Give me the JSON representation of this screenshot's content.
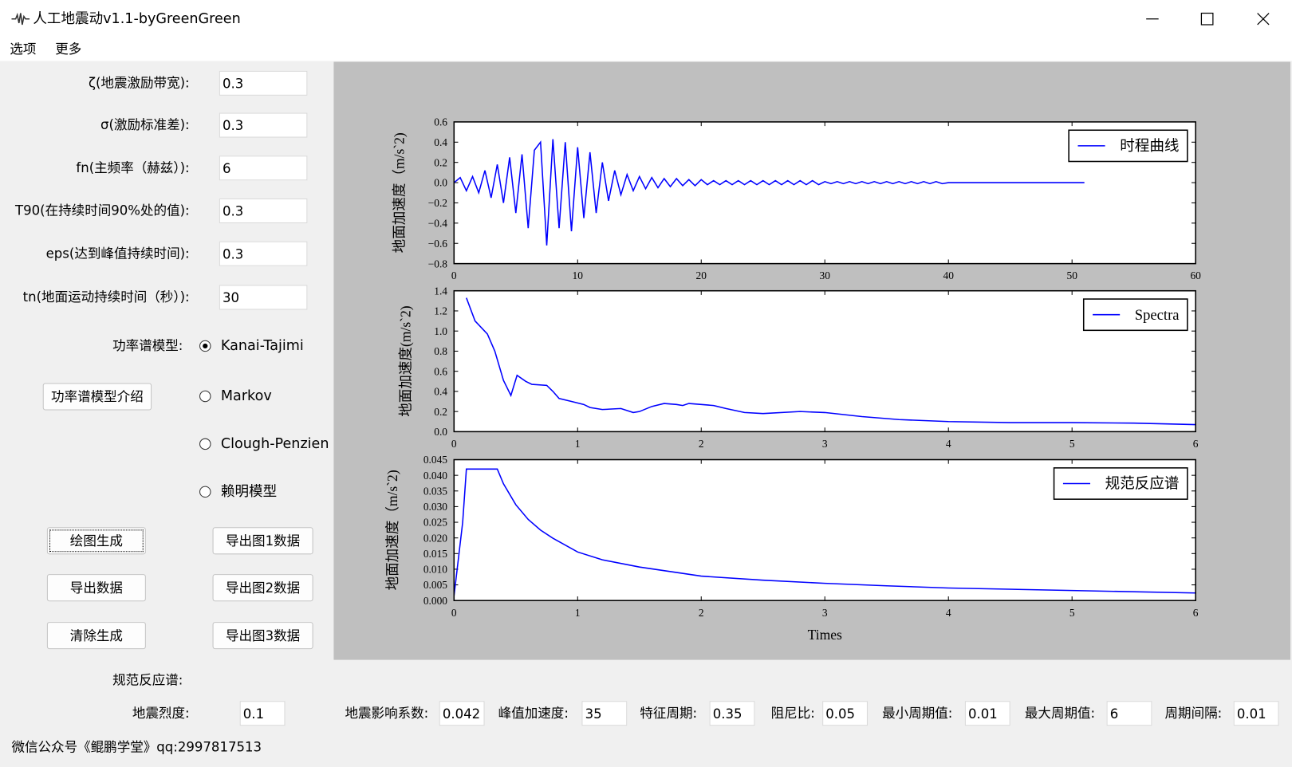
{
  "window": {
    "title": "人工地震动v1.1-byGreenGreen",
    "menu": [
      "选项",
      "更多"
    ]
  },
  "form": {
    "fields": [
      {
        "label": "ζ(地震激励带宽):",
        "value": "0.3"
      },
      {
        "label": "σ(激励标准差):",
        "value": "0.3"
      },
      {
        "label": "fn(主频率（赫兹）):",
        "value": "6"
      },
      {
        "label": "T90(在持续时间90%处的值):",
        "value": "0.3"
      },
      {
        "label": "eps(达到峰值持续时间):",
        "value": "0.3"
      },
      {
        "label": "tn(地面运动持续时间（秒）):",
        "value": "30"
      }
    ],
    "model_label": "功率谱模型:",
    "models": [
      {
        "label": "Kanai-Tajimi",
        "checked": true
      },
      {
        "label": "Markov",
        "checked": false
      },
      {
        "label": "Clough-Penzien",
        "checked": false
      },
      {
        "label": "赖明模型",
        "checked": false
      }
    ],
    "intro_button": "功率谱模型介绍",
    "buttons": [
      "绘图生成",
      "导出图1数据",
      "导出数据",
      "导出图2数据",
      "清除生成",
      "导出图3数据"
    ]
  },
  "spectrum": {
    "title": "规范反应谱:",
    "fields": [
      {
        "label": "地震烈度:",
        "value": "0.1"
      },
      {
        "label": "地震影响系数:",
        "value": "0.042"
      },
      {
        "label": "峰值加速度:",
        "value": "35"
      },
      {
        "label": "特征周期:",
        "value": "0.35"
      },
      {
        "label": "阻尼比:",
        "value": "0.05"
      },
      {
        "label": "最小周期值:",
        "value": "0.01"
      },
      {
        "label": "最大周期值:",
        "value": "6"
      },
      {
        "label": "周期间隔:",
        "value": "0.01"
      }
    ]
  },
  "footer": "微信公众号《鲲鹏学堂》qq:2997817513",
  "charts": [
    {
      "type": "line",
      "y_label": "地面加速度（m/s`2)",
      "legend": "upper right",
      "xlim": [
        0,
        60
      ],
      "xticks": [
        0,
        10,
        20,
        30,
        40,
        50,
        60
      ],
      "ylim": [
        -0.8,
        0.6
      ],
      "yticks": [
        {
          "value": -0.8,
          "label": "−0.8"
        },
        {
          "value": -0.6,
          "label": "−0.6"
        },
        {
          "value": -0.4,
          "label": "−0.4"
        },
        {
          "value": -0.2,
          "label": "−0.2"
        },
        {
          "value": 0,
          "label": "0.0"
        },
        0.2,
        0.4,
        0.6
      ],
      "x": [
        0,
        0.5,
        1,
        1.5,
        2,
        2.5,
        3,
        3.5,
        4,
        4.5,
        5,
        5.5,
        6,
        6.5,
        7,
        7.5,
        8,
        8.5,
        9,
        9.5,
        10,
        10.5,
        11,
        11.5,
        12,
        12.5,
        13,
        13.5,
        14,
        14.5,
        15,
        15.5,
        16,
        16.5,
        17,
        17.5,
        18,
        18.5,
        19,
        19.5,
        20,
        20.5,
        21,
        21.5,
        22,
        22.5,
        23,
        23.5,
        24,
        24.5,
        25,
        25.5,
        26,
        26.5,
        27,
        27.5,
        28,
        28.5,
        29,
        29.5,
        30,
        30.5,
        31,
        31.5,
        32,
        32.5,
        33,
        33.5,
        34,
        34.5,
        35,
        35.5,
        36,
        36.5,
        37,
        37.5,
        38,
        38.5,
        39,
        39.5,
        40,
        40.5,
        41,
        41.5,
        42,
        42.5,
        43,
        43.5,
        44,
        44.5,
        45,
        45.5,
        46,
        46.5,
        47,
        47.5,
        48,
        48.5,
        49,
        49.5,
        50,
        50.5,
        51
      ],
      "series": [
        {
          "name": "时程曲线",
          "color": "#0000ff",
          "values": [
            0,
            0.05,
            -0.08,
            0.06,
            -0.1,
            0.12,
            -0.15,
            0.18,
            -0.2,
            0.25,
            -0.3,
            0.28,
            -0.45,
            0.32,
            0.4,
            -0.62,
            0.43,
            -0.45,
            0.4,
            -0.48,
            0.35,
            -0.35,
            0.3,
            -0.3,
            0.2,
            -0.18,
            0.12,
            -0.12,
            0.08,
            -0.08,
            0.06,
            -0.06,
            0.05,
            -0.05,
            0.04,
            -0.04,
            0.04,
            -0.03,
            0.03,
            -0.03,
            0.03,
            -0.02,
            0.02,
            -0.02,
            0.02,
            -0.02,
            0.02,
            -0.02,
            0.02,
            -0.02,
            0.02,
            -0.02,
            0.02,
            -0.02,
            0.02,
            -0.02,
            0.02,
            -0.02,
            0.02,
            -0.02,
            0.01,
            -0.01,
            0.01,
            -0.01,
            0.01,
            -0.01,
            0.01,
            -0.01,
            0.01,
            -0.01,
            0.01,
            -0.01,
            0.01,
            -0.01,
            0.01,
            -0.01,
            0.01,
            -0.01,
            0.01,
            -0.01,
            0,
            0,
            0,
            0,
            0,
            0,
            0,
            0,
            0,
            0,
            0,
            0,
            0,
            0,
            0,
            0,
            0,
            0,
            0,
            0,
            0,
            0,
            0
          ]
        }
      ]
    },
    {
      "type": "line",
      "y_label": "地面加速度(m/s`2)",
      "legend": "upper right",
      "xlim": [
        0,
        6
      ],
      "xticks": [
        0,
        1,
        2,
        3,
        4,
        5,
        6
      ],
      "ylim": [
        0,
        1.4
      ],
      "yticks": [
        {
          "value": 0,
          "label": "0.0"
        },
        0.2,
        0.4,
        0.6,
        0.8,
        {
          "value": 1,
          "label": "1.0"
        },
        1.2,
        1.4
      ],
      "x": [
        0.1,
        0.17,
        0.27,
        0.33,
        0.4,
        0.46,
        0.51,
        0.58,
        0.63,
        0.75,
        0.8,
        0.85,
        0.95,
        1.05,
        1.1,
        1.2,
        1.35,
        1.45,
        1.5,
        1.6,
        1.7,
        1.8,
        1.85,
        1.9,
        2.0,
        2.1,
        2.2,
        2.35,
        2.5,
        2.8,
        3.0,
        3.3,
        3.6,
        4.0,
        4.5,
        5.0,
        5.5,
        6.0
      ],
      "series": [
        {
          "name": "Spectra",
          "color": "#0000ff",
          "values": [
            1.33,
            1.1,
            0.97,
            0.8,
            0.51,
            0.36,
            0.56,
            0.5,
            0.47,
            0.46,
            0.4,
            0.33,
            0.3,
            0.27,
            0.24,
            0.22,
            0.23,
            0.19,
            0.2,
            0.25,
            0.28,
            0.27,
            0.26,
            0.28,
            0.27,
            0.26,
            0.23,
            0.19,
            0.18,
            0.2,
            0.19,
            0.15,
            0.12,
            0.1,
            0.09,
            0.09,
            0.085,
            0.07
          ]
        }
      ]
    },
    {
      "type": "line",
      "y_label": "地面加速度（m/s`2)",
      "x_label": "Times",
      "legend": "upper right",
      "xlim": [
        0,
        6
      ],
      "xticks": [
        0,
        1,
        2,
        3,
        4,
        5,
        6
      ],
      "ylim": [
        0,
        0.045
      ],
      "yticks": [
        {
          "value": 0,
          "label": "0.000"
        },
        0.005,
        {
          "value": 0.01,
          "label": "0.010"
        },
        0.015,
        {
          "value": 0.02,
          "label": "0.020"
        },
        0.025,
        {
          "value": 0.03,
          "label": "0.030"
        },
        0.035,
        {
          "value": 0.04,
          "label": "0.040"
        },
        0.045
      ],
      "x": [
        0,
        0.07,
        0.1,
        0.35,
        0.4,
        0.5,
        0.6,
        0.7,
        0.8,
        1,
        1.2,
        1.5,
        2,
        2.5,
        3,
        3.5,
        4,
        5,
        6
      ],
      "series": [
        {
          "name": "规范反应谱",
          "color": "#0000ff",
          "values": [
            0.0015,
            0.025,
            0.042,
            0.042,
            0.0373,
            0.0306,
            0.0259,
            0.0225,
            0.0199,
            0.0155,
            0.013,
            0.0107,
            0.0078,
            0.0065,
            0.0055,
            0.0047,
            0.004,
            0.0032,
            0.0024
          ]
        }
      ]
    }
  ]
}
